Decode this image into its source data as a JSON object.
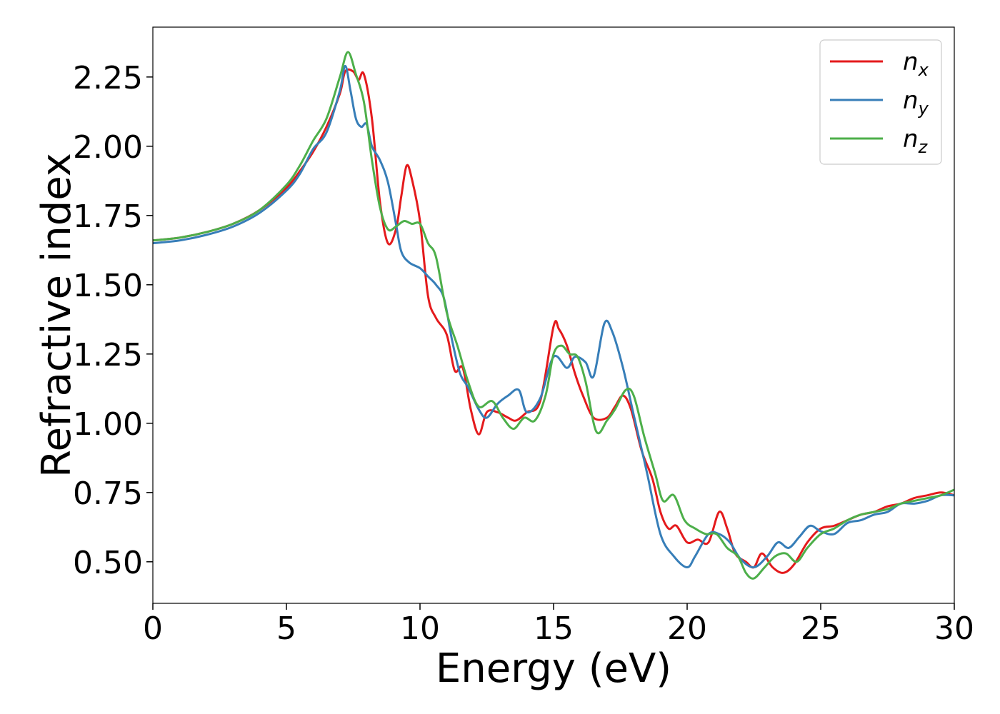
{
  "chart_data": {
    "type": "line",
    "title": "",
    "xlabel": "Energy (eV)",
    "ylabel": "Refractive index",
    "xlim": [
      0,
      30
    ],
    "ylim": [
      0.35,
      2.43
    ],
    "xticks": [
      "0",
      "5",
      "10",
      "15",
      "20",
      "25",
      "30"
    ],
    "yticks": [
      "0.50",
      "0.75",
      "1.00",
      "1.25",
      "1.50",
      "1.75",
      "2.00",
      "2.25"
    ],
    "grid": false,
    "legend_position": "top-right",
    "series": [
      {
        "name": "n_x",
        "legend_base": "n",
        "legend_sub": "x",
        "color": "#e41a1c",
        "x": [
          0,
          1,
          2,
          3,
          4,
          5,
          5.5,
          6,
          6.5,
          7,
          7.2,
          7.5,
          7.7,
          7.9,
          8.2,
          8.5,
          8.8,
          9.1,
          9.3,
          9.5,
          9.7,
          10,
          10.3,
          10.6,
          11,
          11.3,
          11.6,
          11.9,
          12.2,
          12.5,
          12.9,
          13.3,
          13.6,
          14,
          14.5,
          15,
          15.2,
          15.5,
          15.8,
          16.1,
          16.5,
          17,
          17.3,
          17.6,
          17.9,
          18.3,
          18.7,
          19,
          19.3,
          19.6,
          20,
          20.4,
          20.8,
          21.2,
          21.5,
          21.8,
          22.2,
          22.5,
          22.8,
          23.2,
          23.6,
          24,
          24.5,
          25,
          25.5,
          26,
          26.5,
          27,
          27.5,
          28,
          28.5,
          29,
          29.5,
          30
        ],
        "y": [
          1.66,
          1.67,
          1.69,
          1.72,
          1.77,
          1.85,
          1.91,
          1.98,
          2.07,
          2.19,
          2.27,
          2.27,
          2.24,
          2.26,
          2.1,
          1.8,
          1.65,
          1.7,
          1.82,
          1.93,
          1.88,
          1.73,
          1.46,
          1.38,
          1.32,
          1.19,
          1.2,
          1.05,
          0.96,
          1.04,
          1.04,
          1.02,
          1.01,
          1.04,
          1.08,
          1.35,
          1.34,
          1.28,
          1.18,
          1.1,
          1.02,
          1.02,
          1.06,
          1.1,
          1.05,
          0.9,
          0.8,
          0.68,
          0.62,
          0.63,
          0.57,
          0.58,
          0.57,
          0.68,
          0.62,
          0.53,
          0.5,
          0.48,
          0.53,
          0.48,
          0.46,
          0.49,
          0.57,
          0.62,
          0.63,
          0.65,
          0.67,
          0.68,
          0.7,
          0.71,
          0.73,
          0.74,
          0.75,
          0.74
        ]
      },
      {
        "name": "n_y",
        "legend_base": "n",
        "legend_sub": "y",
        "color": "#377eb8",
        "x": [
          0,
          1,
          2,
          3,
          4,
          5,
          5.5,
          6,
          6.5,
          7,
          7.2,
          7.4,
          7.6,
          7.8,
          8,
          8.2,
          8.5,
          8.8,
          9.1,
          9.3,
          9.6,
          10,
          10.3,
          10.6,
          10.9,
          11.2,
          11.5,
          11.8,
          12.2,
          12.5,
          12.9,
          13.3,
          13.7,
          14,
          14.5,
          15,
          15.5,
          15.8,
          16.2,
          16.5,
          16.9,
          17.2,
          17.6,
          18,
          18.5,
          19,
          19.5,
          20,
          20.3,
          20.8,
          21.2,
          21.6,
          22,
          22.5,
          23,
          23.4,
          23.8,
          24.2,
          24.6,
          25,
          25.5,
          26,
          26.5,
          27,
          27.5,
          28,
          28.5,
          29,
          29.5,
          30
        ],
        "y": [
          1.65,
          1.66,
          1.68,
          1.71,
          1.76,
          1.84,
          1.9,
          1.99,
          2.05,
          2.2,
          2.29,
          2.2,
          2.1,
          2.07,
          2.08,
          2.0,
          1.95,
          1.87,
          1.72,
          1.62,
          1.58,
          1.56,
          1.53,
          1.5,
          1.45,
          1.3,
          1.18,
          1.13,
          1.05,
          1.02,
          1.07,
          1.1,
          1.12,
          1.04,
          1.09,
          1.24,
          1.2,
          1.24,
          1.22,
          1.17,
          1.36,
          1.33,
          1.2,
          1.03,
          0.82,
          0.6,
          0.52,
          0.48,
          0.52,
          0.6,
          0.6,
          0.57,
          0.51,
          0.48,
          0.52,
          0.57,
          0.55,
          0.59,
          0.63,
          0.61,
          0.6,
          0.64,
          0.65,
          0.67,
          0.68,
          0.71,
          0.71,
          0.72,
          0.74,
          0.74
        ]
      },
      {
        "name": "n_z",
        "legend_base": "n",
        "legend_sub": "z",
        "color": "#4daf4a",
        "x": [
          0,
          1,
          2,
          3,
          4,
          5,
          5.5,
          6,
          6.5,
          7,
          7.3,
          7.6,
          7.9,
          8.2,
          8.5,
          8.8,
          9.1,
          9.4,
          9.7,
          10,
          10.3,
          10.6,
          11,
          11.4,
          11.8,
          12.2,
          12.7,
          13.1,
          13.5,
          13.9,
          14.3,
          14.7,
          15,
          15.3,
          15.6,
          15.9,
          16.2,
          16.6,
          17,
          17.3,
          17.7,
          18,
          18.4,
          18.8,
          19.1,
          19.5,
          19.9,
          20.3,
          20.7,
          21.1,
          21.5,
          21.9,
          22.2,
          22.5,
          22.9,
          23.3,
          23.7,
          24.1,
          24.5,
          25,
          25.5,
          26,
          26.5,
          27,
          27.5,
          28,
          28.5,
          29,
          29.5,
          30
        ],
        "y": [
          1.66,
          1.67,
          1.69,
          1.72,
          1.77,
          1.86,
          1.93,
          2.02,
          2.1,
          2.25,
          2.34,
          2.26,
          2.16,
          1.95,
          1.78,
          1.7,
          1.71,
          1.73,
          1.72,
          1.72,
          1.65,
          1.6,
          1.4,
          1.28,
          1.15,
          1.06,
          1.08,
          1.02,
          0.98,
          1.02,
          1.01,
          1.1,
          1.25,
          1.28,
          1.25,
          1.24,
          1.15,
          0.97,
          1.01,
          1.05,
          1.12,
          1.1,
          0.95,
          0.82,
          0.72,
          0.74,
          0.65,
          0.62,
          0.6,
          0.6,
          0.55,
          0.52,
          0.46,
          0.44,
          0.48,
          0.52,
          0.53,
          0.5,
          0.55,
          0.6,
          0.62,
          0.65,
          0.67,
          0.68,
          0.69,
          0.71,
          0.72,
          0.73,
          0.74,
          0.76
        ]
      }
    ]
  }
}
